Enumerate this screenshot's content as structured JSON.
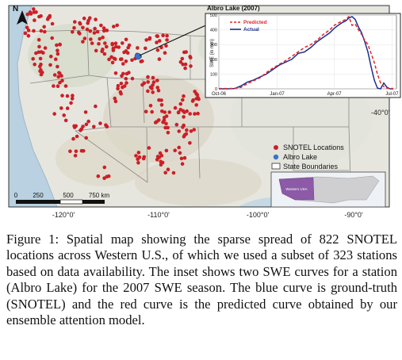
{
  "map": {
    "north_label": "N",
    "lon_labels": [
      "-120°0'",
      "-110°0'",
      "-100°0'",
      "-90°0'"
    ],
    "lat_labels": [
      "-40°0'"
    ],
    "scale_labels": [
      "0",
      "250",
      "500",
      "750 km"
    ],
    "legend": {
      "items": [
        "SNOTEL Locations",
        "Albro Lake",
        "State Boundaries"
      ],
      "colors": {
        "snotel": "#cc1f26",
        "albro": "#3a73c4",
        "boundary": "#ffffff"
      }
    },
    "overview_label": "Western USA",
    "inset_title": "Albro Lake (2007)"
  },
  "chart_data": {
    "type": "line",
    "title": "Albro Lake (2007)",
    "ylabel": "SWE (in mm)",
    "xlabel": "",
    "ylim": [
      0,
      500
    ],
    "yticks": [
      0,
      100,
      200,
      300,
      400,
      500
    ],
    "xtick_labels": [
      "Oct-06",
      "Jan-07",
      "Apr-07",
      "Jul-07"
    ],
    "xtick_days": [
      0,
      92,
      182,
      273
    ],
    "series": [
      {
        "name": "Predicted",
        "color": "#e0262b",
        "dash": true,
        "x": [
          0,
          15,
          25,
          35,
          45,
          55,
          65,
          75,
          85,
          95,
          105,
          115,
          125,
          135,
          145,
          155,
          165,
          175,
          182,
          188,
          195,
          200,
          205,
          210,
          215,
          220,
          225,
          230,
          235,
          240,
          245,
          250,
          255,
          260,
          265,
          270,
          275
        ],
        "y": [
          2,
          2,
          3,
          10,
          35,
          55,
          75,
          110,
          140,
          165,
          190,
          220,
          250,
          280,
          300,
          330,
          370,
          400,
          430,
          445,
          460,
          470,
          490,
          430,
          440,
          400,
          370,
          330,
          300,
          240,
          180,
          100,
          40,
          15,
          5,
          3,
          2
        ]
      },
      {
        "name": "Actual",
        "color": "#1f2f8f",
        "dash": false,
        "x": [
          0,
          15,
          25,
          35,
          45,
          55,
          65,
          75,
          85,
          95,
          105,
          115,
          125,
          135,
          145,
          155,
          165,
          175,
          182,
          188,
          195,
          200,
          205,
          210,
          215,
          220,
          225,
          230,
          235,
          240,
          245,
          250,
          255,
          260,
          265,
          270,
          275
        ],
        "y": [
          0,
          0,
          2,
          20,
          45,
          60,
          80,
          100,
          130,
          160,
          180,
          200,
          240,
          250,
          280,
          320,
          350,
          380,
          410,
          430,
          450,
          460,
          480,
          490,
          470,
          420,
          380,
          320,
          250,
          150,
          60,
          5,
          0,
          40,
          10,
          0,
          0
        ]
      }
    ]
  },
  "caption": {
    "text": "Figure 1: Spatial map showing the sparse spread of 822 SNOTEL locations across Western U.S., of which we used a subset of 323 stations based on data availability. The inset shows two SWE curves for a station (Albro Lake) for the 2007 SWE season. The blue curve is ground-truth (SNOTEL) and the red curve is the predicted curve obtained by our ensemble attention model."
  }
}
